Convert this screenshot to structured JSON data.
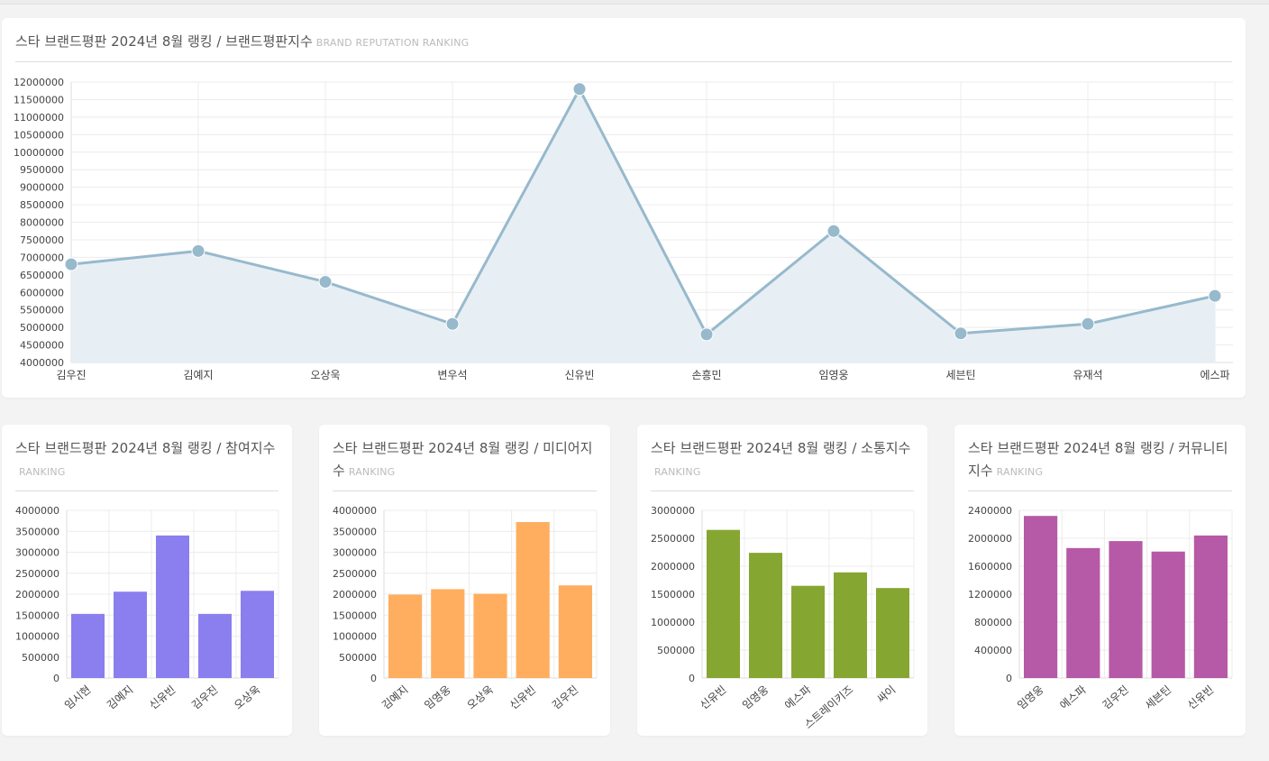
{
  "main": {
    "title": "스타 브랜드평판 2024년 8월 랭킹 / 브랜드평판지수",
    "subtitle": "BRAND REPUTATION RANKING"
  },
  "panels": [
    {
      "title": "스타 브랜드평판 2024년 8월 랭킹 / 참여지수",
      "subtitle": "RANKING"
    },
    {
      "title": "스타 브랜드평판 2024년 8월 랭킹 / 미디어지수",
      "subtitle": "RANKING"
    },
    {
      "title": "스타 브랜드평판 2024년 8월 랭킹 / 소통지수",
      "subtitle": "RANKING"
    },
    {
      "title": "스타 브랜드평판 2024년 8월 랭킹 / 커뮤니티지수",
      "subtitle": "RANKING"
    }
  ],
  "colors": {
    "line": "#97b9cc",
    "line_fill": "#e7eff4",
    "bar_purple": "#8b7eef",
    "bar_orange": "#ffae5f",
    "bar_green": "#86a632",
    "bar_magenta": "#b659a6"
  },
  "chart_data": [
    {
      "type": "line",
      "title": "스타 브랜드평판 2024년 8월 랭킹 / 브랜드평판지수",
      "categories": [
        "김우진",
        "김예지",
        "오상욱",
        "변우석",
        "신유빈",
        "손흥민",
        "임영웅",
        "세븐틴",
        "유재석",
        "에스파"
      ],
      "values": [
        6800000,
        7180000,
        6300000,
        5100000,
        11800000,
        4800000,
        7750000,
        4830000,
        5100000,
        5900000
      ],
      "ylim": [
        4000000,
        12000000
      ],
      "yticks": [
        "12000000",
        "11500000",
        "11000000",
        "10500000",
        "10000000",
        "9500000",
        "9000000",
        "8500000",
        "8000000",
        "7500000",
        "7000000",
        "6500000",
        "6000000",
        "5500000",
        "5000000",
        "4500000",
        "4000000"
      ],
      "grid": true
    },
    {
      "type": "bar",
      "title": "스타 브랜드평판 2024년 8월 랭킹 / 참여지수",
      "categories": [
        "임시현",
        "김예지",
        "신유빈",
        "김우진",
        "오상욱"
      ],
      "values": [
        1530000,
        2060000,
        3400000,
        1530000,
        2080000
      ],
      "ylim": [
        0,
        4000000
      ],
      "yticks": [
        "4000000",
        "3500000",
        "3000000",
        "2500000",
        "2000000",
        "1500000",
        "1000000",
        "500000",
        "0"
      ]
    },
    {
      "type": "bar",
      "title": "스타 브랜드평판 2024년 8월 랭킹 / 미디어지수",
      "categories": [
        "김예지",
        "임영웅",
        "오상욱",
        "신유빈",
        "김우진"
      ],
      "values": [
        1990000,
        2120000,
        2010000,
        3720000,
        2210000
      ],
      "ylim": [
        0,
        4000000
      ],
      "yticks": [
        "4000000",
        "3500000",
        "3000000",
        "2500000",
        "2000000",
        "1500000",
        "1000000",
        "500000",
        "0"
      ]
    },
    {
      "type": "bar",
      "title": "스타 브랜드평판 2024년 8월 랭킹 / 소통지수",
      "categories": [
        "신유빈",
        "임영웅",
        "에스파",
        "스트레이키즈",
        "싸이"
      ],
      "values": [
        2650000,
        2240000,
        1650000,
        1890000,
        1610000
      ],
      "ylim": [
        0,
        3000000
      ],
      "yticks": [
        "3000000",
        "2500000",
        "2000000",
        "1500000",
        "1000000",
        "500000",
        "0"
      ]
    },
    {
      "type": "bar",
      "title": "스타 브랜드평판 2024년 8월 랭킹 / 커뮤니티지수",
      "categories": [
        "임영웅",
        "에스파",
        "김우진",
        "세븐틴",
        "신유빈"
      ],
      "values": [
        2320000,
        1860000,
        1960000,
        1810000,
        2040000
      ],
      "ylim": [
        0,
        2400000
      ],
      "yticks": [
        "2400000",
        "2000000",
        "1600000",
        "1200000",
        "800000",
        "400000",
        "0"
      ]
    }
  ]
}
